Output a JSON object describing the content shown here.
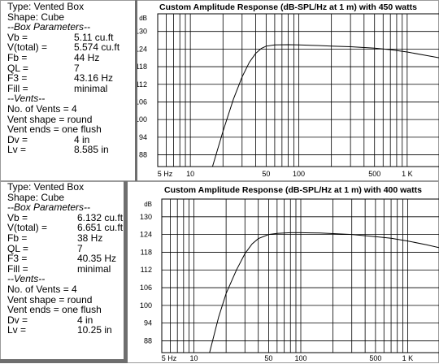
{
  "panels": [
    {
      "info": {
        "type": "Type: Vented Box",
        "shape": "Shape: Cube",
        "box_params_header": "--Box Parameters--",
        "rows": [
          {
            "k": "Vb =",
            "v": "5.11 cu.ft"
          },
          {
            "k": "V(total) =",
            "v": "5.574 cu.ft"
          },
          {
            "k": "Fb =",
            "v": "44 Hz"
          },
          {
            "k": "QL =",
            "v": "7"
          },
          {
            "k": "F3 =",
            "v": "43.16 Hz"
          },
          {
            "k": "Fill =",
            "v": "minimal"
          }
        ],
        "vents_header": "--Vents--",
        "vent_lines": [
          "No. of Vents = 4",
          "Vent shape = round",
          "Vent ends = one flush"
        ],
        "vent_rows": [
          {
            "k": "Dv =",
            "v": "4 in"
          },
          {
            "k": "Lv =",
            "v": "8.585 in"
          }
        ]
      },
      "chart_data": {
        "type": "line",
        "title": "Custom Amplitude Response (dB-SPL/Hz at 1 m) with 450 watts",
        "y_unit_label": "dB",
        "x_scale": "log",
        "xlim": [
          5,
          2000
        ],
        "ylim": [
          84,
          136
        ],
        "y_ticks": [
          "130",
          "124",
          "118",
          "112",
          "106",
          "100",
          "94",
          "88"
        ],
        "x_ticks": [
          "5 Hz",
          "10",
          "50",
          "100",
          "500",
          "1 K"
        ],
        "grid": true,
        "series": [
          {
            "x": [
              16,
              20,
              25,
              30,
              35,
              40,
              45,
              50,
              60,
              80,
              100,
              150,
              200,
              300,
              500,
              700,
              1000,
              1500,
              2000
            ],
            "y": [
              84,
              96,
              107,
              114.5,
              119.5,
              122.5,
              124.2,
              125,
              125.4,
              125.5,
              125.4,
              125.2,
              125,
              124.8,
              124.3,
              123.8,
              123,
              121.8,
              121
            ]
          }
        ]
      }
    },
    {
      "info": {
        "type": "Type: Vented Box",
        "shape": "Shape: Cube",
        "box_params_header": "--Box Parameters--",
        "rows": [
          {
            "k": "Vb =",
            "v": "6.132 cu.ft"
          },
          {
            "k": "V(total) =",
            "v": "6.651 cu.ft"
          },
          {
            "k": "Fb =",
            "v": "38 Hz"
          },
          {
            "k": "QL =",
            "v": "7"
          },
          {
            "k": "F3 =",
            "v": "40.35 Hz"
          },
          {
            "k": "Fill =",
            "v": "minimal"
          }
        ],
        "vents_header": "--Vents--",
        "vent_lines": [
          "No. of Vents = 4",
          "Vent shape = round",
          "Vent ends = one flush"
        ],
        "vent_rows": [
          {
            "k": "Dv =",
            "v": "4 in"
          },
          {
            "k": "Lv =",
            "v": "10.25 in"
          }
        ]
      },
      "chart_data": {
        "type": "line",
        "title": "Custom Amplitude Response (dB-SPL/Hz at 1 m) with 400 watts",
        "y_unit_label": "dB",
        "x_scale": "log",
        "xlim": [
          5,
          2000
        ],
        "ylim": [
          84,
          136
        ],
        "y_ticks": [
          "130",
          "124",
          "118",
          "112",
          "106",
          "100",
          "94",
          "88"
        ],
        "x_ticks": [
          "5 Hz",
          "10",
          "50",
          "100",
          "500",
          "1 K"
        ],
        "grid": true,
        "series": [
          {
            "x": [
              14,
              17,
              20,
              25,
              30,
              35,
              40,
              50,
              60,
              80,
              100,
              150,
              200,
              300,
              500,
              700,
              1000,
              1500,
              2000
            ],
            "y": [
              84,
              96,
              104,
              112,
              117.5,
              120.8,
              122.6,
              124,
              124.4,
              124.6,
              124.6,
              124.5,
              124.3,
              124,
              123.3,
              122.7,
              121.8,
              120.5,
              119.5
            ]
          }
        ]
      }
    }
  ]
}
